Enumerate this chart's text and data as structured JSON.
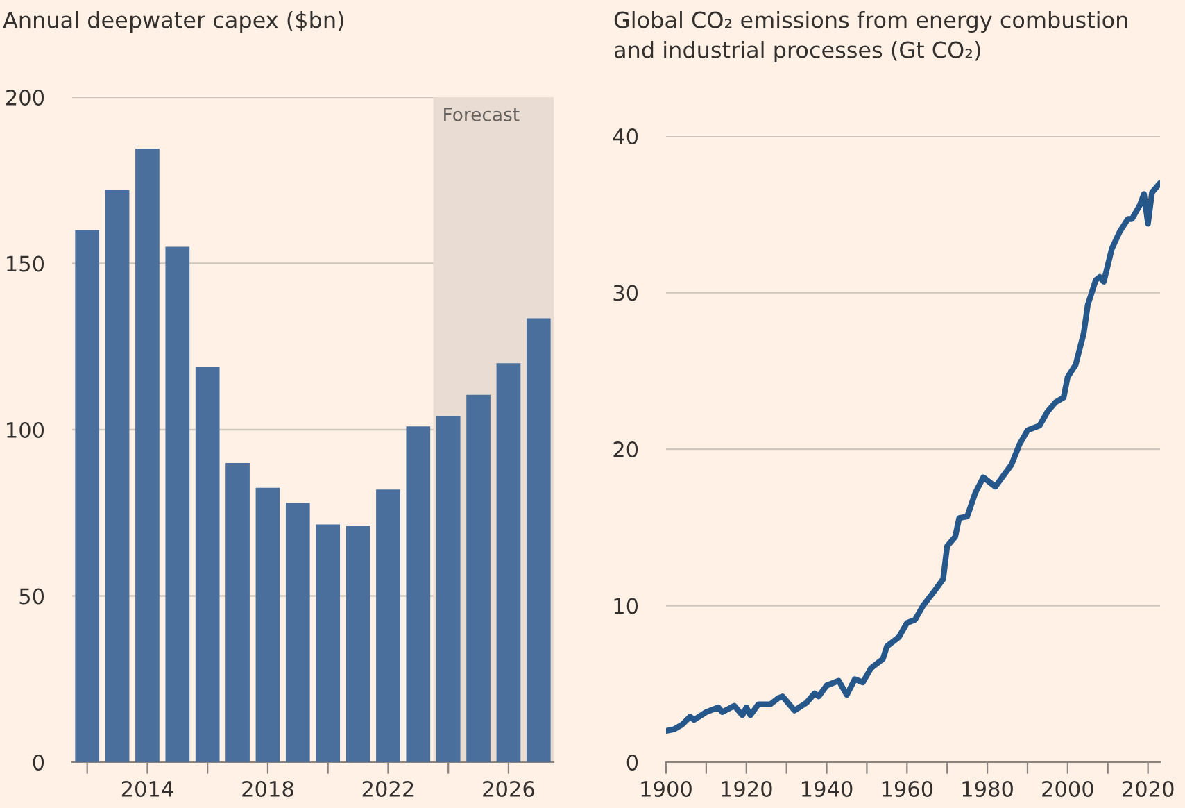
{
  "chart_data": [
    {
      "type": "bar",
      "title": "Annual deepwater capex ($bn)",
      "x": [
        2012,
        2013,
        2014,
        2015,
        2016,
        2017,
        2018,
        2019,
        2020,
        2021,
        2022,
        2023,
        2024,
        2025,
        2026,
        2027
      ],
      "values": [
        160,
        172,
        184.5,
        155,
        119,
        90,
        82.5,
        78,
        71.5,
        71,
        82,
        101,
        104,
        110.5,
        120,
        133.5
      ],
      "color": "#4a6f9c",
      "xlim": [
        2011.5,
        2027.5
      ],
      "xticks": [
        {
          "value": 2012,
          "label": null
        },
        2014,
        {
          "value": 2016,
          "label": null
        },
        2018,
        {
          "value": 2020,
          "label": null
        },
        2022,
        {
          "value": 2024,
          "label": null
        },
        2026
      ],
      "ylim": [
        0,
        200
      ],
      "yticks": [
        0,
        50,
        100,
        150,
        200
      ],
      "bands": [
        {
          "axis": "x",
          "from": 2023.5,
          "to": 2027.5,
          "label": "Forecast",
          "color": "#e9ddd3"
        }
      ],
      "grid": "y"
    },
    {
      "type": "line",
      "title": "Global CO₂ emissions from energy combustion\nand industrial processes (Gt CO₂)",
      "x": [
        1900,
        1902,
        1904,
        1906,
        1907,
        1910,
        1913,
        1914,
        1917,
        1919,
        1920,
        1921,
        1923,
        1926,
        1928,
        1929,
        1932,
        1935,
        1937,
        1938,
        1940,
        1943,
        1945,
        1947,
        1949,
        1951,
        1954,
        1955,
        1958,
        1960,
        1962,
        1964,
        1967,
        1969,
        1970,
        1972,
        1973,
        1975,
        1977,
        1979,
        1982,
        1984,
        1986,
        1988,
        1990,
        1993,
        1995,
        1997,
        1999,
        2000,
        2002,
        2004,
        2005,
        2007,
        2008,
        2009,
        2011,
        2013,
        2015,
        2016,
        2018,
        2019,
        2020,
        2021,
        2023
      ],
      "values": [
        2.0,
        2.1,
        2.4,
        2.9,
        2.7,
        3.2,
        3.5,
        3.2,
        3.6,
        3.0,
        3.5,
        3.0,
        3.7,
        3.7,
        4.1,
        4.2,
        3.3,
        3.8,
        4.4,
        4.2,
        4.9,
        5.2,
        4.3,
        5.3,
        5.1,
        6.0,
        6.6,
        7.4,
        8.0,
        8.9,
        9.1,
        10.0,
        11.0,
        11.7,
        13.8,
        14.4,
        15.6,
        15.7,
        17.2,
        18.2,
        17.6,
        18.3,
        19.0,
        20.3,
        21.2,
        21.5,
        22.4,
        23.0,
        23.3,
        24.6,
        25.4,
        27.4,
        29.2,
        30.8,
        31.0,
        30.7,
        32.8,
        33.9,
        34.7,
        34.7,
        35.6,
        36.3,
        34.4,
        36.4,
        37.0
      ],
      "color": "#26578a",
      "xlim": [
        1900,
        2023
      ],
      "xticks": [
        1900,
        {
          "value": 1910,
          "label": null
        },
        1920,
        {
          "value": 1930,
          "label": null
        },
        1940,
        {
          "value": 1950,
          "label": null
        },
        1960,
        {
          "value": 1970,
          "label": null
        },
        1980,
        {
          "value": 1990,
          "label": null
        },
        2000,
        {
          "value": 2010,
          "label": null
        },
        2020
      ],
      "ylim": [
        0,
        40
      ],
      "yticks": [
        0,
        10,
        20,
        30,
        40
      ],
      "grid": "y",
      "line_style": "solid",
      "marker": "none"
    }
  ]
}
